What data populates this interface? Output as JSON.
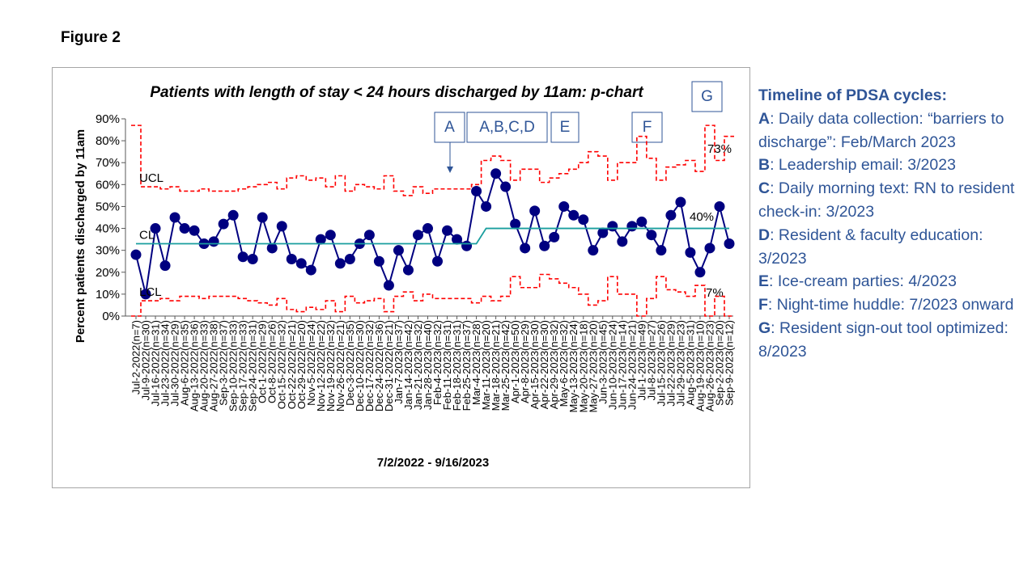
{
  "figure_label": "Figure 2",
  "chart_data": {
    "type": "line",
    "title": "Patients with length of stay < 24 hours discharged by 11am: p-chart",
    "x_label": "7/2/2022 - 9/16/2023",
    "y_label": "Percent patients discharged by 11am",
    "categories": [
      "Jul-2-2022(n=7)",
      "Jul-9-2022(n=30)",
      "Jul-16-2022(n=31)",
      "Jul-23-2022(n=34)",
      "Jul-30-2022(n=29)",
      "Aug-6-2022(n=35)",
      "Aug-13-2022(n=36)",
      "Aug-20-2022(n=33)",
      "Aug-27-2022(n=38)",
      "Sep-3-2022(n=37)",
      "Sep-10-2022(n=33)",
      "Sep-17-2022(n=33)",
      "Sep-24-2022(n=31)",
      "Oct-1-2022(n=29)",
      "Oct-8-2022(n=26)",
      "Oct-15-2022(n=32)",
      "Oct-22-2022(n=21)",
      "Oct-29-2022(n=20)",
      "Nov-5-2022(n=24)",
      "Nov-12-2022(n=22)",
      "Nov-19-2022(n=32)",
      "Nov-26-2022(n=21)",
      "Dec-3-2022(n=35)",
      "Dec-10-2022(n=30)",
      "Dec-17-2022(n=32)",
      "Dec-24-2022(n=36)",
      "Dec-31-2022(n=21)",
      "Jan-7-2023(n=37)",
      "Jan-14-2023(n=42)",
      "Jan-21-2023(n=32)",
      "Jan-28-2023(n=40)",
      "Feb-4-2023(n=32)",
      "Feb-11-2023(n=31)",
      "Feb-18-2023(n=31)",
      "Feb-25-2023(n=37)",
      "Mar-4-2023(n=28)",
      "Mar-11-2023(n=20)",
      "Mar-18-2023(n=21)",
      "Mar-25-2023(n=42)",
      "Apr-1-2023(n=50)",
      "Apr-8-2023(n=29)",
      "Apr-15-2023(n=30)",
      "Apr-22-2023(n=30)",
      "Apr-29-2023(n=32)",
      "May-6-2023(n=32)",
      "May-13-2023(n=24)",
      "May-20-2023(n=18)",
      "May-27-2023(n=20)",
      "Jun-3-2023(n=45)",
      "Jun-10-2023(n=24)",
      "Jun-17-2023(n=14)",
      "Jun-24-2023(n=21)",
      "Jul-1-2023(n=49)",
      "Jul-8-2023(n=27)",
      "Jul-15-2023(n=26)",
      "Jul-22-2023(n=29)",
      "Jul-29-2023(n=23)",
      "Aug-5-2023(n=31)",
      "Aug-19-2023(n=10)",
      "Aug-26-2023(n=23)",
      "Sep-2-2023(n=20)",
      "Sep-9-2023(n=12)"
    ],
    "series": [
      {
        "color": "#000080",
        "style": "markers",
        "values": [
          28,
          10,
          40,
          23,
          45,
          40,
          39,
          33,
          34,
          42,
          46,
          27,
          26,
          45,
          31,
          41,
          26,
          24,
          21,
          35,
          37,
          24,
          26,
          33,
          37,
          25,
          14,
          30,
          21,
          37,
          40,
          25,
          39,
          35,
          32,
          57,
          50,
          65,
          59,
          42,
          31,
          48,
          32,
          36,
          50,
          46,
          44,
          30,
          38,
          41,
          34,
          41,
          43,
          37,
          30,
          46,
          52,
          29,
          20,
          31,
          50,
          33
        ]
      },
      {
        "name": "UCL",
        "color": "#ff0000",
        "style": "step-dashed",
        "values": [
          87,
          59,
          59,
          58,
          59,
          57,
          57,
          58,
          57,
          57,
          57,
          58,
          59,
          60,
          61,
          58,
          63,
          64,
          62,
          63,
          59,
          64,
          57,
          60,
          59,
          58,
          64,
          57,
          55,
          59,
          56,
          58,
          58,
          58,
          58,
          60,
          71,
          73,
          71,
          62,
          67,
          67,
          61,
          63,
          65,
          67,
          70,
          75,
          73,
          62,
          70,
          70,
          82,
          72,
          62,
          68,
          69,
          71,
          66,
          87,
          71,
          82
        ]
      },
      {
        "name": "CL",
        "color": "#1a9e9e",
        "style": "solid",
        "values": [
          33,
          33,
          33,
          33,
          33,
          33,
          33,
          33,
          33,
          33,
          33,
          33,
          33,
          33,
          33,
          33,
          33,
          33,
          33,
          33,
          33,
          33,
          33,
          33,
          33,
          33,
          33,
          33,
          33,
          33,
          33,
          33,
          33,
          33,
          33,
          33,
          40,
          40,
          40,
          40,
          40,
          40,
          40,
          40,
          40,
          40,
          40,
          40,
          40,
          40,
          40,
          40,
          40,
          40,
          40,
          40,
          40,
          40,
          40,
          40,
          40,
          40
        ]
      },
      {
        "name": "LCL",
        "color": "#ff0000",
        "style": "step-dashed",
        "values": [
          0,
          7,
          7,
          8,
          7,
          9,
          9,
          8,
          9,
          9,
          9,
          8,
          7,
          6,
          5,
          8,
          3,
          2,
          4,
          3,
          7,
          2,
          9,
          6,
          7,
          8,
          2,
          9,
          11,
          7,
          10,
          8,
          8,
          8,
          8,
          6,
          9,
          7,
          9,
          18,
          13,
          13,
          19,
          17,
          15,
          13,
          10,
          5,
          7,
          18,
          10,
          10,
          0,
          8,
          18,
          12,
          11,
          9,
          14,
          0,
          9,
          0
        ]
      }
    ],
    "ylim": [
      0,
      90
    ],
    "yticks": [
      {
        "value": 0,
        "label": "0%"
      },
      {
        "value": 10,
        "label": "10%"
      },
      {
        "value": 20,
        "label": "20%"
      },
      {
        "value": 30,
        "label": "30%"
      },
      {
        "value": 40,
        "label": "40%"
      },
      {
        "value": 50,
        "label": "50%"
      },
      {
        "value": 60,
        "label": "60%"
      },
      {
        "value": 70,
        "label": "70%"
      },
      {
        "value": 80,
        "label": "80%"
      },
      {
        "value": 90,
        "label": "90%"
      }
    ],
    "grid": false,
    "annotations": [
      "A",
      "A,B,C,D",
      "E",
      "F",
      "G",
      "73%",
      "40%",
      "7%"
    ]
  },
  "timeline": {
    "title": "Timeline of PDSA cycles:",
    "items": [
      {
        "key": "A",
        "text": ": Daily data collection: “barriers to discharge”: Feb/March 2023"
      },
      {
        "key": "B",
        "text": ": Leadership email: 3/2023"
      },
      {
        "key": "C",
        "text": ": Daily morning text: RN to resident check-in: 3/2023"
      },
      {
        "key": "D",
        "text": ": Resident & faculty education: 3/2023"
      },
      {
        "key": "E",
        "text": ": Ice-cream parties: 4/2023"
      },
      {
        "key": "F",
        "text": ": Night-time huddle: 7/2023 onward"
      },
      {
        "key": "G",
        "text": ": Resident sign-out tool optimized: 8/2023"
      }
    ]
  }
}
